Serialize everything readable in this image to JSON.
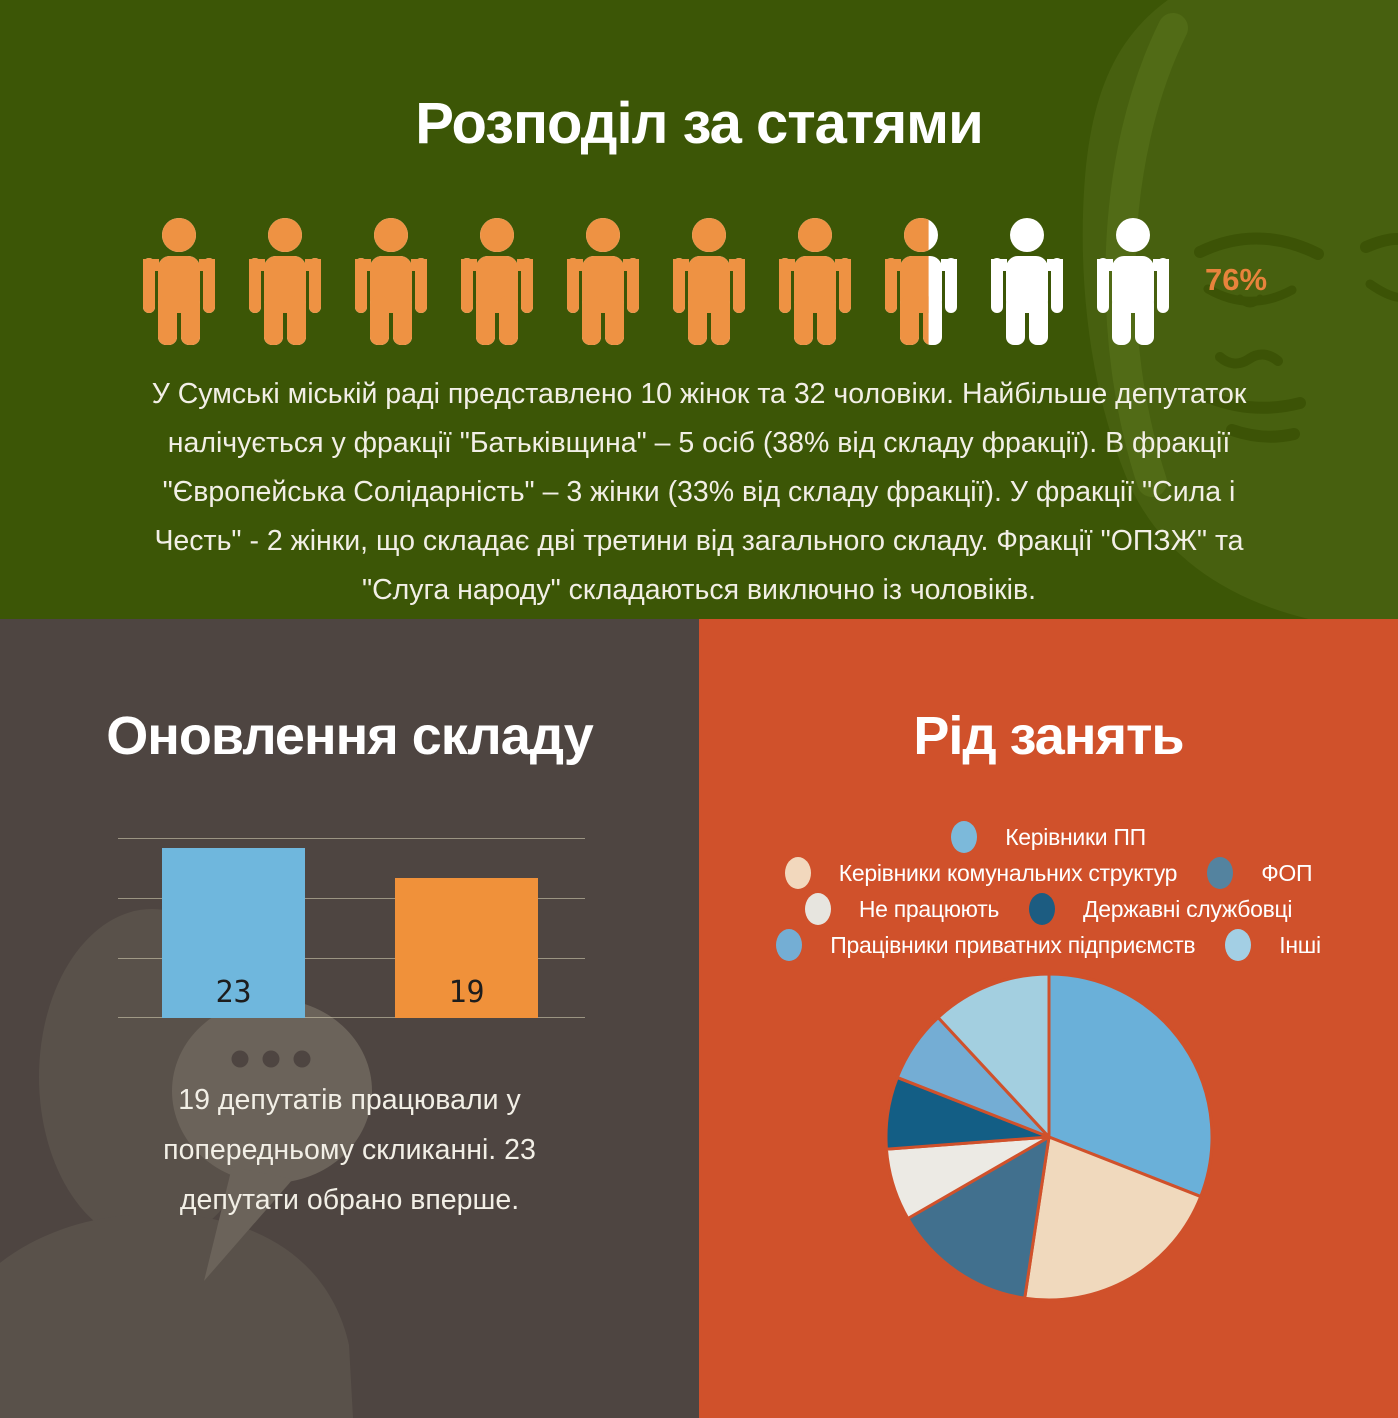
{
  "top": {
    "title": "Розподіл за статями",
    "paragraph": "У Сумські міській раді представлено 10 жінок та 32 чоловіки. Найбільше депутаток налічується у фракції \"Батьківщина\" – 5 осіб (38% від складу фракції). В фракції \"Європейська Солідарність\" – 3 жінки (33% від складу фракції). У фракції \"Сила і Честь\" - 2 жінки, що складає дві третини від загального складу. Фракції \"ОПЗЖ\" та \"Слуга народу\" складаються виключно із чоловіків."
  },
  "left": {
    "title": "Оновлення складу",
    "paragraph": "19 депутатів працювали у попередньому скликанні. 23 депутати обрано вперше."
  },
  "right": {
    "title": "Рід занять",
    "legend_rows": [
      [
        {
          "color": "#7cb9da",
          "label": "Керівники ПП"
        }
      ],
      [
        {
          "color": "#f2d8bd",
          "label": "Керівники комунальних структур"
        },
        {
          "color": "#54839f",
          "label": "ФОП"
        }
      ],
      [
        {
          "color": "#e7e5df",
          "label": "Не працюють"
        },
        {
          "color": "#1c5c81",
          "label": "Державні службовці"
        }
      ],
      [
        {
          "color": "#74aed4",
          "label": "Працівники приватних підприємств"
        },
        {
          "color": "#a3cfe4",
          "label": "Інші"
        }
      ]
    ]
  },
  "colors": {
    "green_bg": "#3c5606",
    "brown_bg": "#4e4541",
    "red_bg": "#d0512b",
    "accent_orange": "#ee9243",
    "text_light": "#f2efe6"
  },
  "chart_data": [
    {
      "type": "pictogram",
      "title": "Розподіл за статями",
      "total_icons": 10,
      "filled_icons": 7.6,
      "percent_label": "76%",
      "men": 32,
      "women": 10,
      "male_color": "#ee9243",
      "female_color": "#ffffff"
    },
    {
      "type": "bar",
      "title": "Оновлення складу",
      "categories": [
        "",
        ""
      ],
      "values": [
        23,
        19
      ],
      "colors": [
        "#6fb7dd",
        "#f0913a"
      ],
      "grid": true,
      "note": "19 депутатів працювали у попередньому скликанні. 23 депутати обрано вперше."
    },
    {
      "type": "pie",
      "title": "Рід занять",
      "labels": [
        "Керівники ПП",
        "Керівники комунальних структур",
        "ФОП",
        "Не працюють",
        "Державні службовці",
        "Працівники приватних підприємств",
        "Інші"
      ],
      "values": [
        13,
        9,
        6,
        3,
        3,
        3,
        5
      ],
      "colors": [
        "#6ab0d9",
        "#f0d9bd",
        "#41708e",
        "#eceae4",
        "#135e85",
        "#74add4",
        "#a3cfe0"
      ],
      "start_angle_deg": -90,
      "clockwise": true,
      "stroke_color": "#d0512b",
      "legend_position": "top"
    }
  ]
}
